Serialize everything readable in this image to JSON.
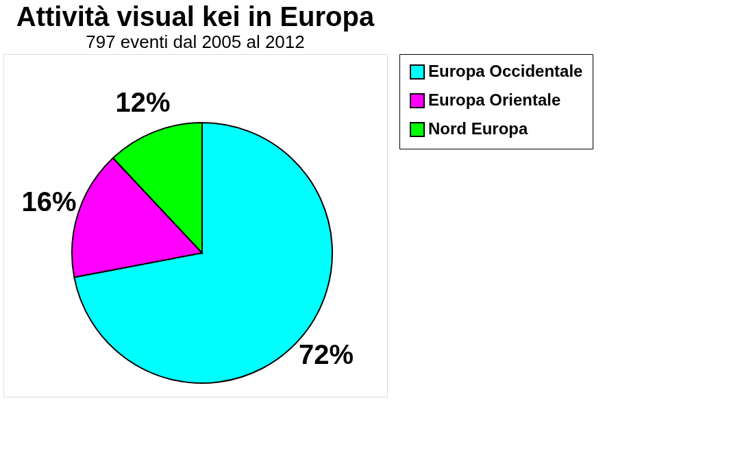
{
  "chart_data": {
    "type": "pie",
    "title": "Attività visual kei in Europa",
    "subtitle": "797 eventi dal 2005 al 2012",
    "categories": [
      "Europa Occidentale",
      "Europa Orientale",
      "Nord Europa"
    ],
    "values": [
      72,
      16,
      12
    ],
    "colors": [
      "#00ffff",
      "#ff00ff",
      "#00ff00"
    ],
    "value_labels": [
      "72%",
      "16%",
      "12%"
    ],
    "legend": "right"
  }
}
